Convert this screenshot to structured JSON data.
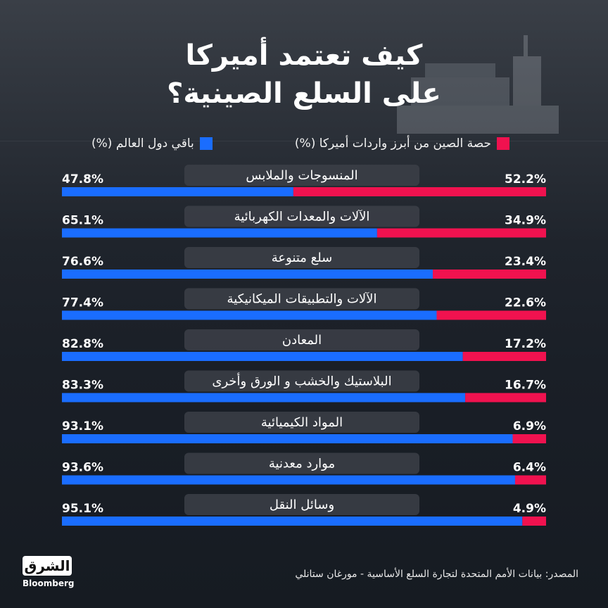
{
  "title_lines": [
    "كيف تعتمد أميركا",
    "على السلع الصينية؟"
  ],
  "legend": {
    "china": "حصة الصين من أبرز واردات أميركا (%)",
    "world": "باقي دول العالم (%)"
  },
  "colors": {
    "china": "#f0124f",
    "world": "#1a6dff",
    "label_box": "#3c4048"
  },
  "source": "المصدر: بيانات الأمم المتحدة لتجارة السلع الأساسية - مورغان ستانلي",
  "logo": {
    "name": "الشرق",
    "sub": "Bloomberg"
  },
  "chart_data": {
    "type": "bar",
    "orientation": "horizontal-stacked-100",
    "title": "كيف تعتمد أميركا على السلع الصينية؟",
    "categories": [
      "المنسوجات والملابس",
      "الآلات والمعدات الكهربائية",
      "سلع متنوعة",
      "الآلات والتطبيقات الميكانيكية",
      "المعادن",
      "البلاستيك والخشب و الورق وأخرى",
      "المواد الكيميائية",
      "موارد معدنية",
      "وسائل النقل"
    ],
    "series": [
      {
        "name": "حصة الصين من أبرز واردات أميركا (%)",
        "values": [
          52.2,
          34.9,
          23.4,
          22.6,
          17.2,
          16.7,
          6.9,
          6.4,
          4.9
        ]
      },
      {
        "name": "باقي دول العالم (%)",
        "values": [
          47.8,
          65.1,
          76.6,
          77.4,
          82.8,
          83.3,
          93.1,
          93.6,
          95.1
        ]
      }
    ],
    "value_labels": {
      "china": [
        "52.2%",
        "34.9%",
        "23.4%",
        "22.6%",
        "17.2%",
        "16.7%",
        "6.9%",
        "6.4%",
        "4.9%"
      ],
      "world": [
        "47.8%",
        "65.1%",
        "76.6%",
        "77.4%",
        "82.8%",
        "83.3%",
        "93.1%",
        "93.6%",
        "95.1%"
      ]
    },
    "xlim": [
      0,
      100
    ],
    "legend_position": "top"
  }
}
